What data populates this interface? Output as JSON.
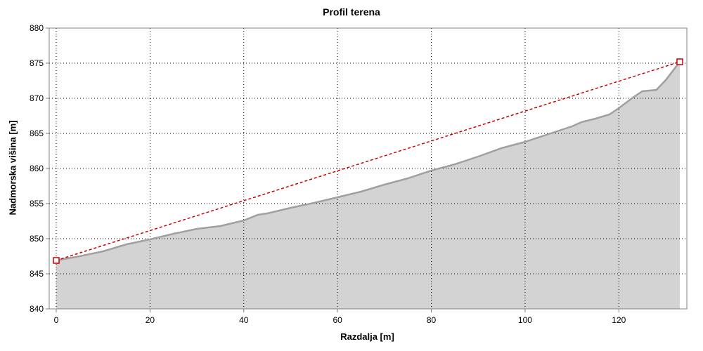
{
  "chart_data": {
    "type": "area",
    "title": "Profil terena",
    "xlabel": "Razdalja [m]",
    "ylabel": "Nadmorska višina [m]",
    "xlim": [
      -1.5,
      134.5
    ],
    "ylim": [
      840,
      880
    ],
    "x_ticks": [
      0,
      20,
      40,
      60,
      80,
      100,
      120
    ],
    "y_ticks": [
      840,
      845,
      850,
      855,
      860,
      865,
      870,
      875,
      880
    ],
    "grid": true,
    "series": [
      {
        "points": [
          [
            0,
            846.9
          ],
          [
            5,
            847.5
          ],
          [
            10,
            848.2
          ],
          [
            15,
            849.2
          ],
          [
            20,
            849.9
          ],
          [
            25,
            850.7
          ],
          [
            30,
            851.4
          ],
          [
            35,
            851.8
          ],
          [
            40,
            852.6
          ],
          [
            43,
            853.4
          ],
          [
            45,
            853.6
          ],
          [
            50,
            854.4
          ],
          [
            55,
            855.1
          ],
          [
            60,
            855.9
          ],
          [
            65,
            856.7
          ],
          [
            70,
            857.7
          ],
          [
            75,
            858.6
          ],
          [
            80,
            859.7
          ],
          [
            85,
            860.6
          ],
          [
            90,
            861.7
          ],
          [
            95,
            862.9
          ],
          [
            100,
            863.8
          ],
          [
            105,
            864.9
          ],
          [
            110,
            866.0
          ],
          [
            112,
            866.6
          ],
          [
            115,
            867.1
          ],
          [
            118,
            867.7
          ],
          [
            120,
            868.6
          ],
          [
            123,
            870.1
          ],
          [
            125,
            871.0
          ],
          [
            128,
            871.2
          ],
          [
            130,
            872.6
          ],
          [
            133,
            875.2
          ]
        ]
      }
    ],
    "line_of_sight": {
      "points": [
        [
          0,
          846.9
        ],
        [
          133,
          875.2
        ]
      ]
    },
    "colors": {
      "fill": "#d3d3d3",
      "terrain_line": "#a0a0a0",
      "sight_line": "#cc0000"
    }
  }
}
